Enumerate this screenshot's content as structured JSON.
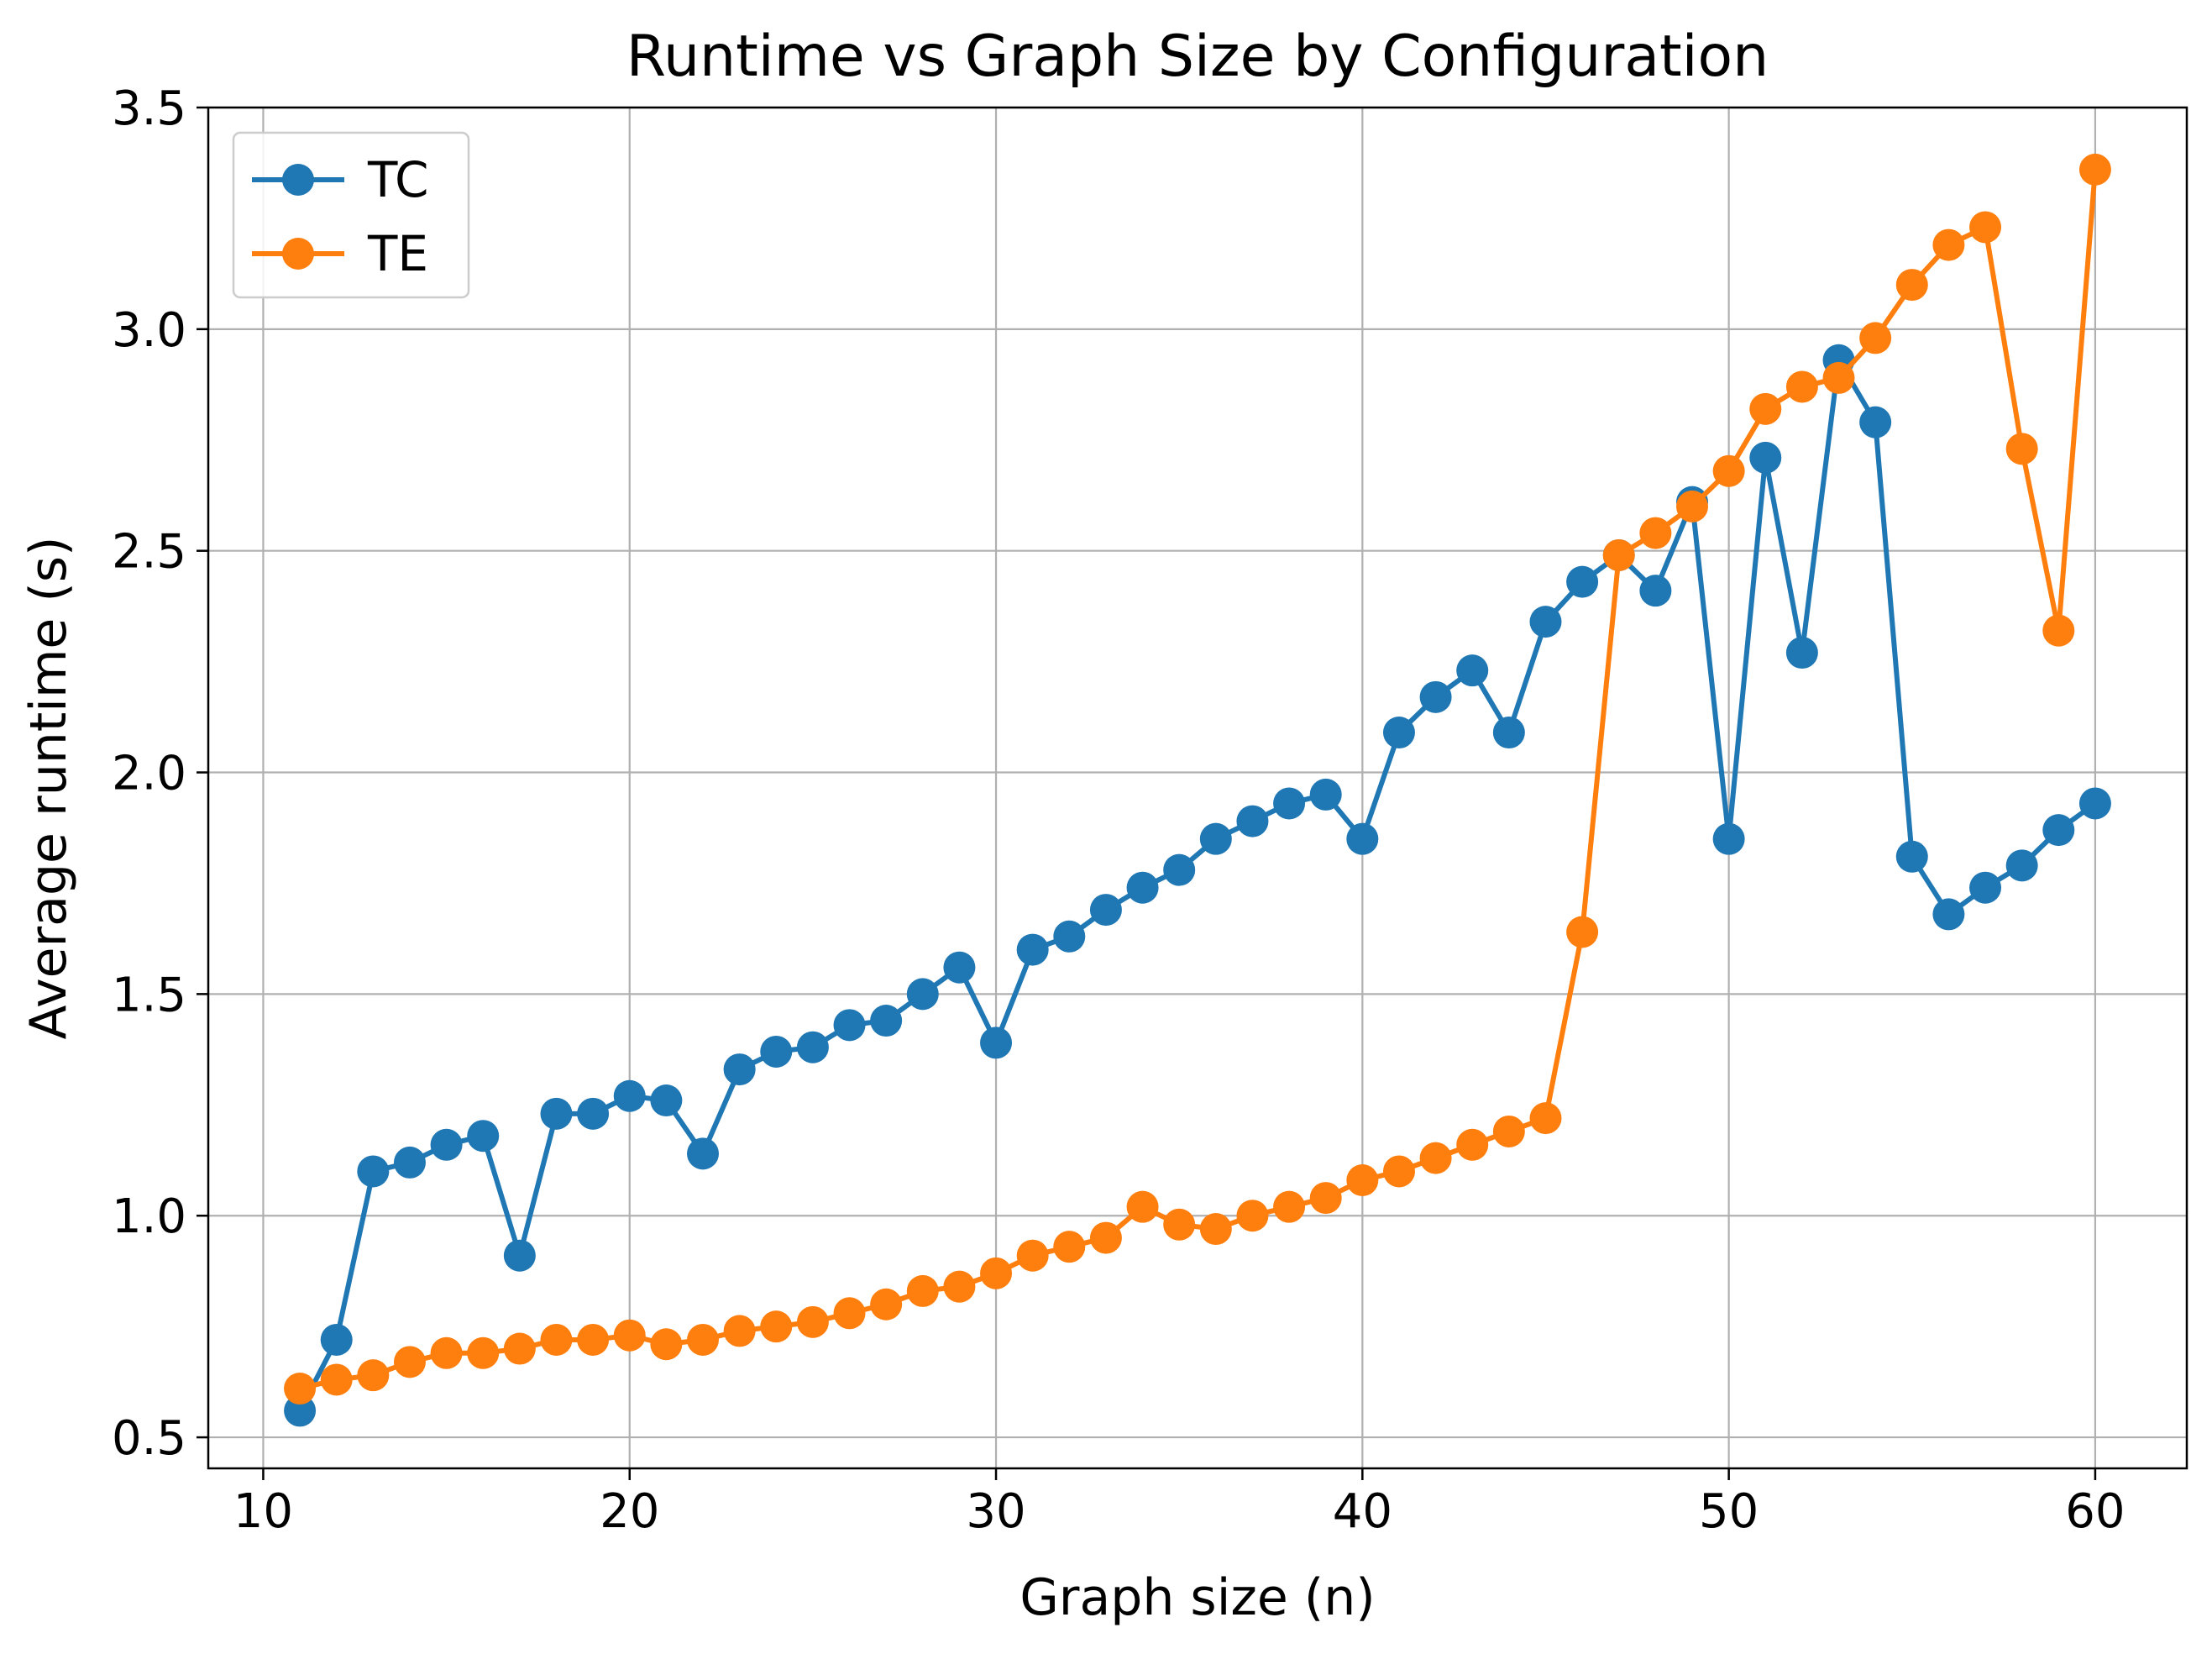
{
  "chart_data": {
    "type": "line",
    "title": "Runtime vs Graph Size by Configuration",
    "xlabel": "Graph size (n)",
    "ylabel": "Average runtime (s)",
    "xlim": [
      8.5,
      62.5
    ],
    "ylim": [
      0.43,
      3.5
    ],
    "xticks": [
      10,
      20,
      30,
      40,
      50,
      60
    ],
    "yticks": [
      0.5,
      1.0,
      1.5,
      2.0,
      2.5,
      3.0,
      3.5
    ],
    "xtick_labels": [
      "10",
      "20",
      "30",
      "40",
      "50",
      "60"
    ],
    "ytick_labels": [
      "0.5",
      "1.0",
      "1.5",
      "2.0",
      "2.5",
      "3.0",
      "3.5"
    ],
    "grid": true,
    "legend_position": "top-left",
    "x": [
      11,
      12,
      13,
      14,
      15,
      16,
      17,
      18,
      19,
      20,
      21,
      22,
      23,
      24,
      25,
      26,
      27,
      28,
      29,
      30,
      31,
      32,
      33,
      34,
      35,
      36,
      37,
      38,
      39,
      40,
      41,
      42,
      43,
      44,
      45,
      46,
      47,
      48,
      49,
      50,
      51,
      52,
      53,
      54,
      55,
      56,
      57,
      58,
      59,
      60
    ],
    "series": [
      {
        "name": "TC",
        "color": "#1f77b4",
        "values": [
          0.56,
          0.72,
          1.1,
          1.12,
          1.16,
          1.18,
          0.91,
          1.23,
          1.23,
          1.27,
          1.26,
          1.14,
          1.33,
          1.37,
          1.38,
          1.43,
          1.44,
          1.5,
          1.56,
          1.39,
          1.6,
          1.63,
          1.69,
          1.74,
          1.78,
          1.85,
          1.89,
          1.93,
          1.95,
          1.85,
          2.09,
          2.17,
          2.23,
          2.09,
          2.34,
          2.43,
          2.49,
          2.41,
          2.61,
          1.85,
          2.71,
          2.27,
          2.93,
          2.79,
          1.81,
          1.68,
          1.74,
          1.79,
          1.87,
          1.93
        ]
      },
      {
        "name": "TE",
        "color": "#ff7f0e",
        "values": [
          0.61,
          0.63,
          0.64,
          0.67,
          0.69,
          0.69,
          0.7,
          0.72,
          0.72,
          0.73,
          0.71,
          0.72,
          0.74,
          0.75,
          0.76,
          0.78,
          0.8,
          0.83,
          0.84,
          0.87,
          0.91,
          0.93,
          0.95,
          1.02,
          0.98,
          0.97,
          1.0,
          1.02,
          1.04,
          1.08,
          1.1,
          1.13,
          1.16,
          1.19,
          1.22,
          1.64,
          2.49,
          2.54,
          2.6,
          2.68,
          2.82,
          2.87,
          2.89,
          2.98,
          3.1,
          3.19,
          3.23,
          2.73,
          2.32,
          3.36
        ]
      }
    ]
  }
}
